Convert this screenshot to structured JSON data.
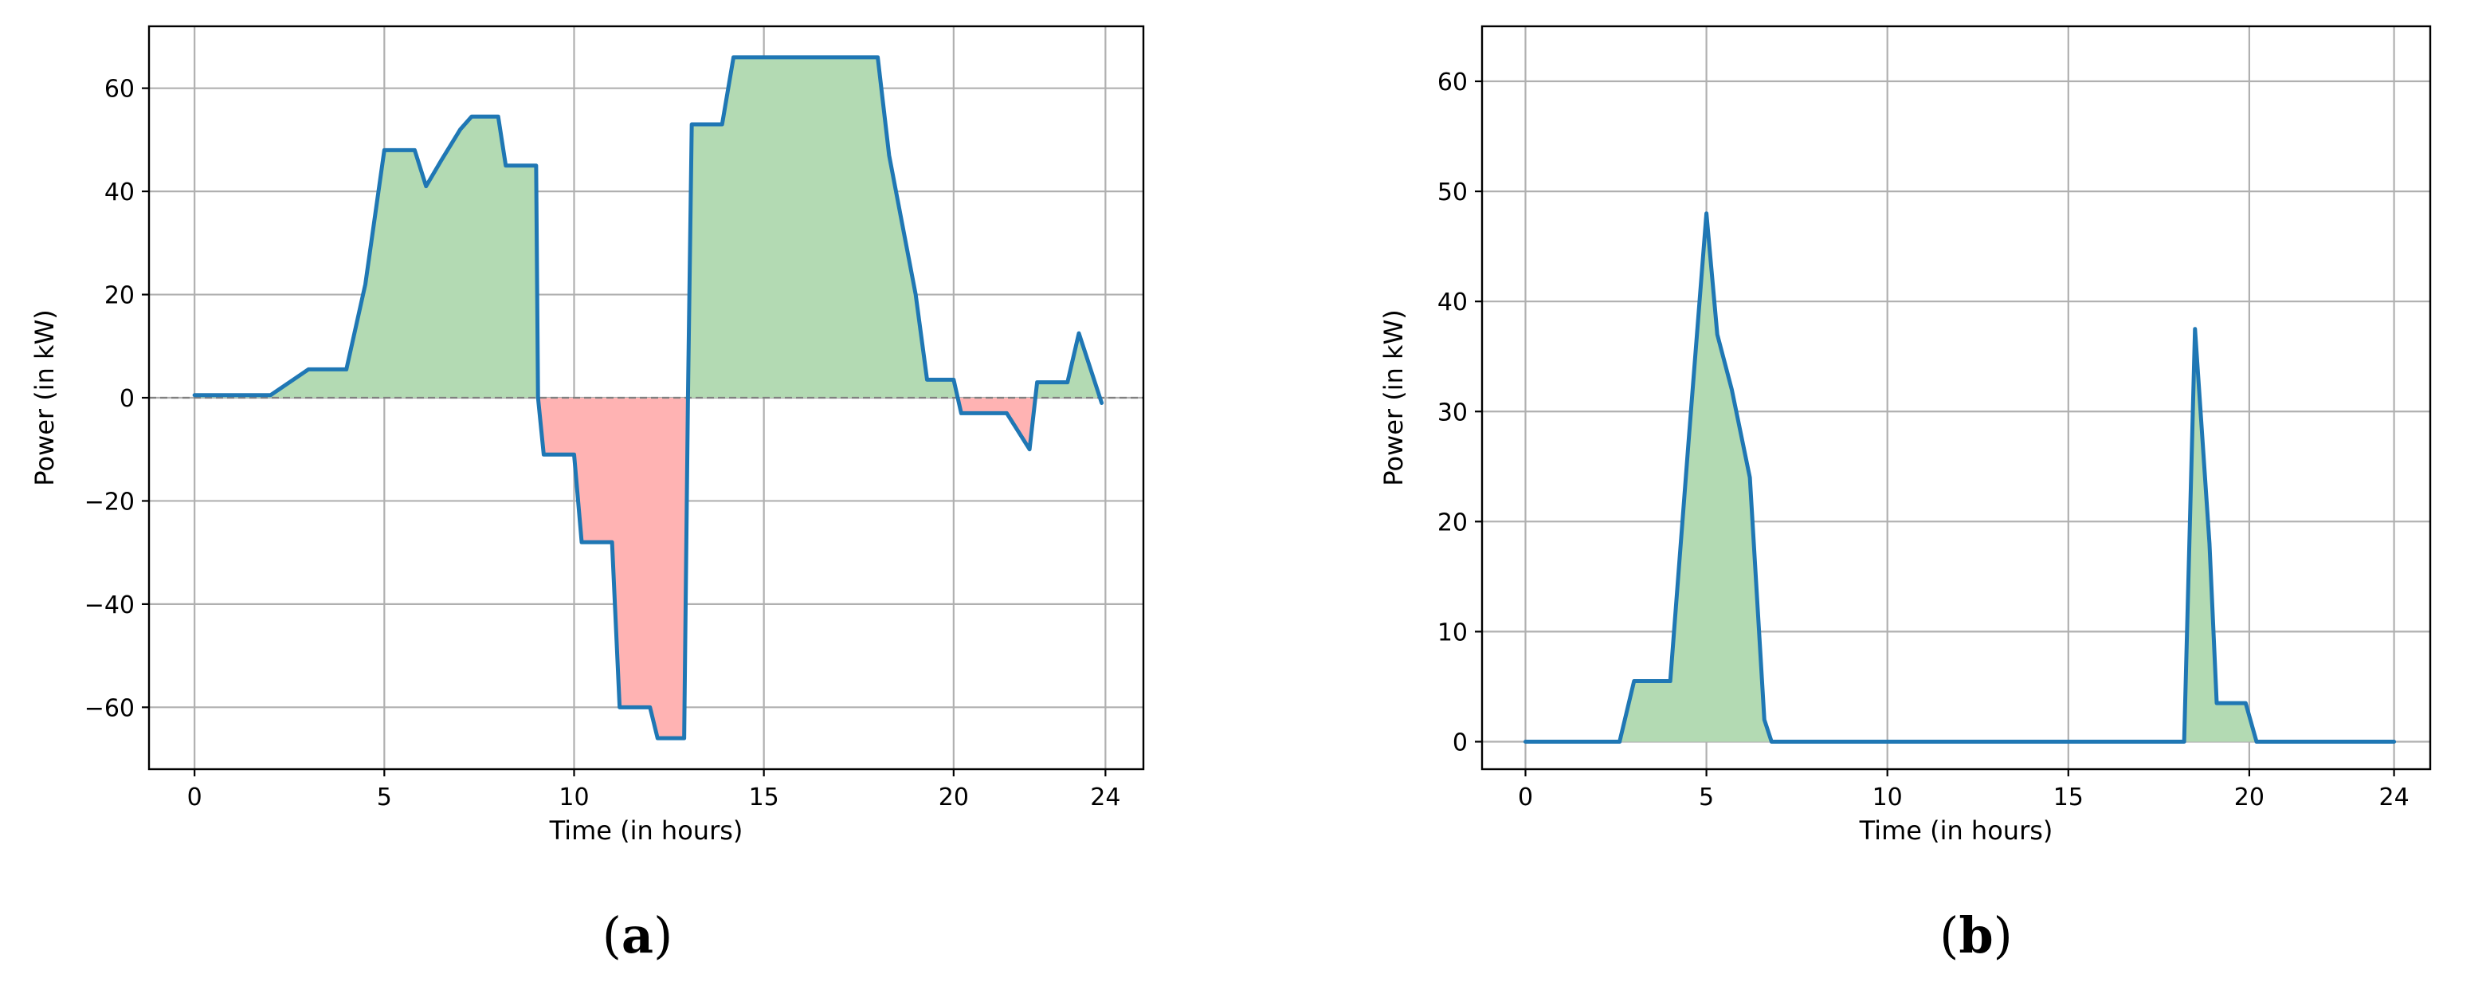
{
  "chart_data": [
    {
      "type": "area",
      "panel_label": "a",
      "xlabel": "Time (in hours)",
      "ylabel": "Power (in kW)",
      "xlim": [
        -1.2,
        25
      ],
      "ylim": [
        -72,
        72
      ],
      "xticks": [
        0,
        5,
        10,
        15,
        20,
        24
      ],
      "yticks": [
        -60,
        -40,
        -20,
        0,
        20,
        40,
        60
      ],
      "grid": true,
      "zero_line": true,
      "fill_positive_color": "#b3dab3",
      "fill_negative_color": "#ffb3b3",
      "line_color": "#1f77b4",
      "series": [
        {
          "x": [
            0,
            1,
            2,
            3,
            4,
            4.5,
            5,
            5.8,
            6.1,
            6.5,
            7,
            7.3,
            8,
            8.2,
            9,
            9.05,
            9.2,
            9.8,
            10,
            10.2,
            10.8,
            11,
            11.2,
            12,
            12.2,
            12.9,
            13,
            13.1,
            13.9,
            14.2,
            18,
            18.3,
            19,
            19.3,
            20,
            20.2,
            21,
            21.4,
            22,
            22.2,
            23,
            23.3,
            23.9
          ],
          "y": [
            0.5,
            0.5,
            0.5,
            5.5,
            5.5,
            22,
            48,
            48,
            41,
            46,
            52,
            54.5,
            54.5,
            45,
            45,
            0,
            -11,
            -11,
            -11,
            -28,
            -28,
            -28,
            -60,
            -60,
            -66,
            -66,
            0,
            53,
            53,
            66,
            66,
            47,
            20,
            3.5,
            3.5,
            -3,
            -3,
            -3,
            -10,
            3,
            3,
            12.5,
            -1
          ]
        }
      ]
    },
    {
      "type": "area",
      "panel_label": "b",
      "xlabel": "Time (in hours)",
      "ylabel": "Power (in kW)",
      "xlim": [
        -1.2,
        25
      ],
      "ylim": [
        -2.5,
        65
      ],
      "xticks": [
        0,
        5,
        10,
        15,
        20,
        24
      ],
      "yticks": [
        0,
        10,
        20,
        30,
        40,
        50,
        60
      ],
      "grid": true,
      "fill_positive_color": "#b3dab3",
      "line_color": "#1f77b4",
      "series": [
        {
          "x": [
            0,
            2.6,
            3,
            4,
            4.5,
            5,
            5.3,
            5.7,
            6.2,
            6.6,
            6.8,
            18.2,
            18.5,
            18.9,
            19.1,
            19.9,
            20.2,
            24
          ],
          "y": [
            0,
            0,
            5.5,
            5.5,
            27,
            48,
            37,
            32,
            24,
            2,
            0,
            0,
            37.5,
            18,
            3.5,
            3.5,
            0,
            0
          ]
        }
      ]
    }
  ]
}
